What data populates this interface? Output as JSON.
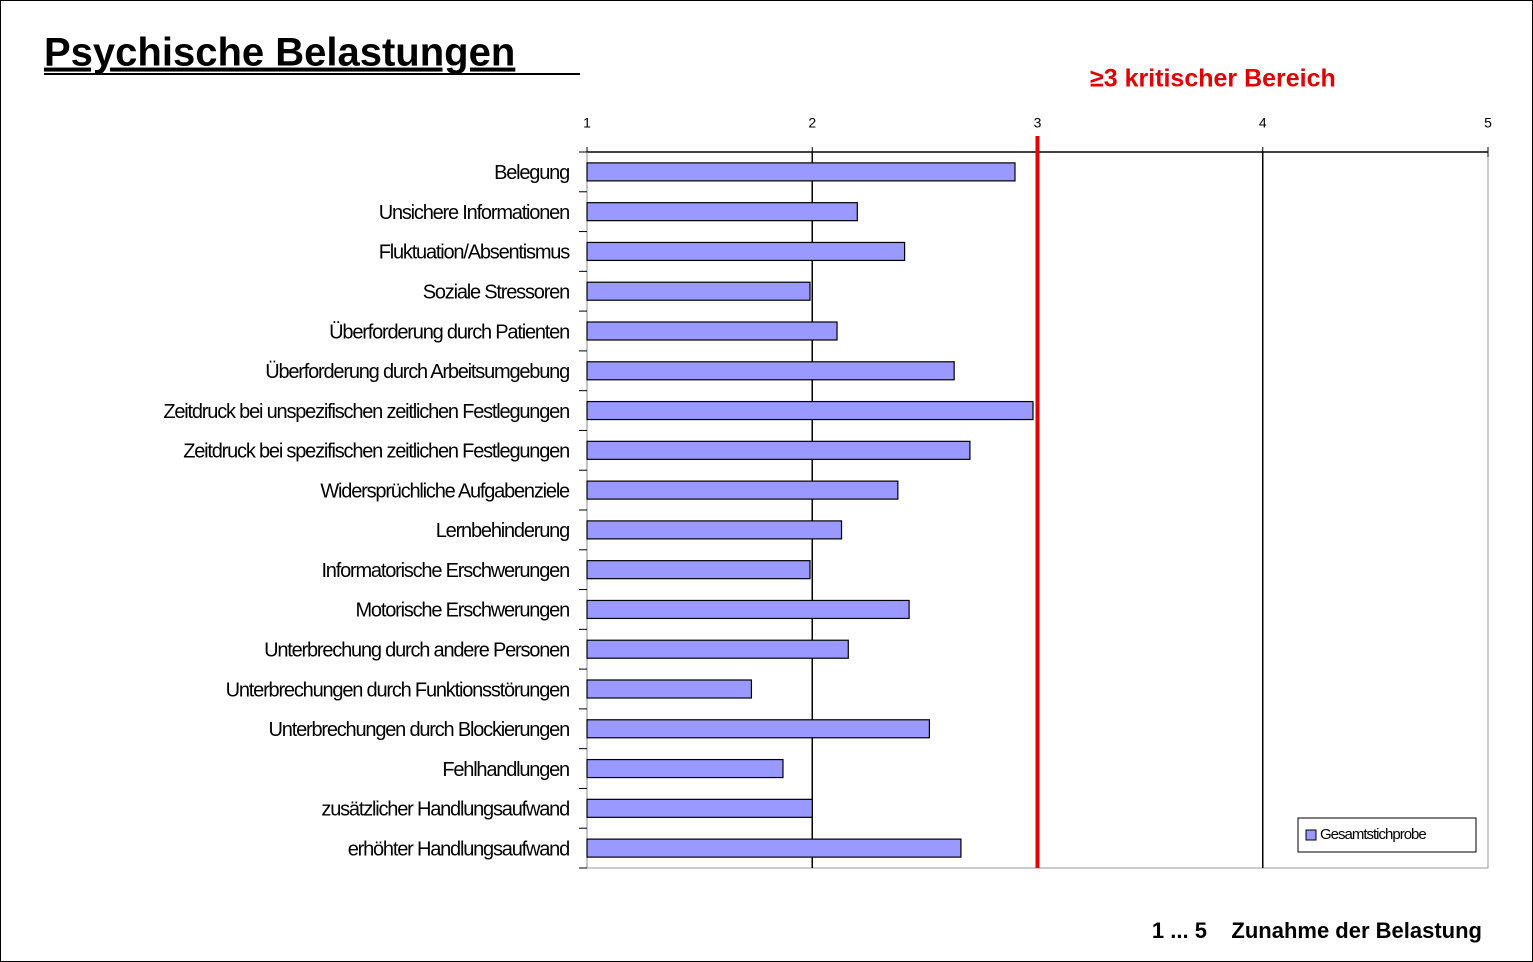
{
  "chart_data": {
    "type": "bar",
    "orientation": "horizontal",
    "title": "Psychische Belastungen",
    "annotation": "≥3   kritischer Bereich",
    "x_axis_note": "1 ... 5    Zunahme der Belastung",
    "categories": [
      "Belegung",
      "Unsichere Informationen",
      "Fluktuation/Absentismus",
      "Soziale Stressoren",
      "Überforderung durch Patienten",
      "Überforderung durch Arbeitsumgebung",
      "Zeitdruck bei unspezifischen zeitlichen Festlegungen",
      "Zeitdruck bei spezifischen zeitlichen Festlegungen",
      "Widersprüchliche Aufgabenziele",
      "Lernbehinderung",
      "Informatorische Erschwerungen",
      "Motorische Erschwerungen",
      "Unterbrechung durch andere Personen",
      "Unterbrechungen durch Funktionsstörungen",
      "Unterbrechungen durch Blockierungen",
      "Fehlhandlungen",
      "zusätzlicher Handlungsaufwand",
      "erhöhter Handlungsaufwand"
    ],
    "series": [
      {
        "name": "Gesamtstichprobe",
        "color": "#9999ff",
        "values": [
          2.9,
          2.2,
          2.41,
          1.99,
          2.11,
          2.63,
          2.98,
          2.7,
          2.38,
          2.13,
          1.99,
          2.43,
          2.16,
          1.73,
          2.52,
          1.87,
          2.0,
          2.66
        ]
      }
    ],
    "xlim": [
      1,
      5
    ],
    "xticks": [
      1,
      2,
      3,
      4,
      5
    ],
    "critical_value": 3,
    "critical_color": "#e00000",
    "grid": true,
    "legend": "lower right"
  }
}
